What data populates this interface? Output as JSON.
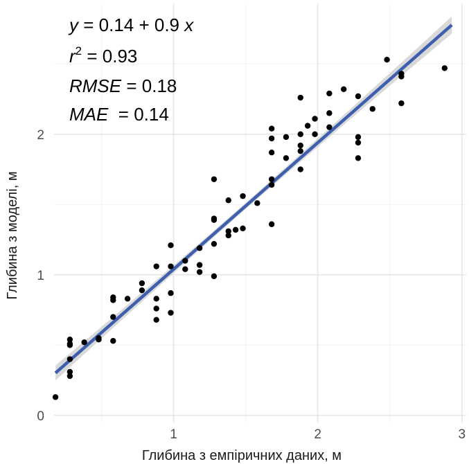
{
  "chart_data": {
    "type": "scatter",
    "xlabel": "Глибина з емпіричних даних, м",
    "ylabel": "Глибина з моделі, м",
    "xlim": [
      0.17,
      3.03
    ],
    "ylim": [
      -0.05,
      2.93
    ],
    "x_ticks": [
      1,
      2,
      3
    ],
    "x_tick_labels": [
      "1",
      "2",
      "3"
    ],
    "y_ticks": [
      0,
      1,
      2
    ],
    "y_tick_labels": [
      "0",
      "1",
      "2"
    ],
    "grid": true,
    "annotations": {
      "eq": {
        "y": "y",
        "eq1": " = 0.14 + 0.9 ",
        "x": "x"
      },
      "r2": {
        "r": "r",
        "sup": "2",
        "rest": " = 0.93"
      },
      "rmse": {
        "label": "RMSE",
        "rest": " = 0.18"
      },
      "mae": {
        "label": "MAE",
        "rest": "  = 0.14"
      }
    },
    "regression": {
      "intercept": 0.14,
      "slope": 0.9,
      "x_range": [
        0.18,
        2.93
      ],
      "color": "#3d5fae",
      "band_color": "#cccccc"
    },
    "point_color": "#000000",
    "points": [
      [
        0.18,
        0.13
      ],
      [
        0.28,
        0.54
      ],
      [
        0.28,
        0.51
      ],
      [
        0.28,
        0.5
      ],
      [
        0.28,
        0.4
      ],
      [
        0.28,
        0.31
      ],
      [
        0.28,
        0.28
      ],
      [
        0.38,
        0.52
      ],
      [
        0.48,
        0.54
      ],
      [
        0.48,
        0.55
      ],
      [
        0.58,
        0.84
      ],
      [
        0.58,
        0.82
      ],
      [
        0.58,
        0.7
      ],
      [
        0.58,
        0.53
      ],
      [
        0.68,
        0.83
      ],
      [
        0.78,
        0.94
      ],
      [
        0.78,
        0.89
      ],
      [
        0.88,
        1.06
      ],
      [
        0.88,
        0.83
      ],
      [
        0.88,
        0.76
      ],
      [
        0.88,
        0.68
      ],
      [
        0.98,
        1.21
      ],
      [
        0.98,
        1.06
      ],
      [
        0.98,
        0.87
      ],
      [
        0.98,
        0.73
      ],
      [
        1.08,
        1.1
      ],
      [
        1.08,
        1.04
      ],
      [
        1.18,
        1.19
      ],
      [
        1.18,
        1.07
      ],
      [
        1.18,
        1.02
      ],
      [
        1.28,
        1.68
      ],
      [
        1.28,
        1.4
      ],
      [
        1.28,
        1.39
      ],
      [
        1.28,
        1.22
      ],
      [
        1.28,
        0.99
      ],
      [
        1.38,
        1.53
      ],
      [
        1.38,
        1.31
      ],
      [
        1.38,
        1.28
      ],
      [
        1.43,
        1.32
      ],
      [
        1.48,
        1.56
      ],
      [
        1.48,
        1.33
      ],
      [
        1.58,
        1.51
      ],
      [
        1.68,
        2.04
      ],
      [
        1.68,
        1.97
      ],
      [
        1.68,
        1.87
      ],
      [
        1.68,
        1.68
      ],
      [
        1.68,
        1.64
      ],
      [
        1.68,
        1.36
      ],
      [
        1.78,
        1.98
      ],
      [
        1.78,
        1.83
      ],
      [
        1.88,
        2.26
      ],
      [
        1.88,
        2.0
      ],
      [
        1.88,
        1.92
      ],
      [
        1.88,
        1.88
      ],
      [
        1.88,
        1.75
      ],
      [
        1.93,
        2.06
      ],
      [
        1.98,
        2.11
      ],
      [
        1.98,
        2.0
      ],
      [
        2.08,
        2.29
      ],
      [
        2.08,
        2.15
      ],
      [
        2.08,
        2.05
      ],
      [
        2.18,
        2.32
      ],
      [
        2.28,
        2.27
      ],
      [
        2.28,
        1.98
      ],
      [
        2.28,
        1.94
      ],
      [
        2.28,
        1.83
      ],
      [
        2.38,
        2.18
      ],
      [
        2.48,
        2.53
      ],
      [
        2.58,
        2.43
      ],
      [
        2.58,
        2.41
      ],
      [
        2.58,
        2.22
      ],
      [
        2.88,
        2.47
      ]
    ]
  }
}
